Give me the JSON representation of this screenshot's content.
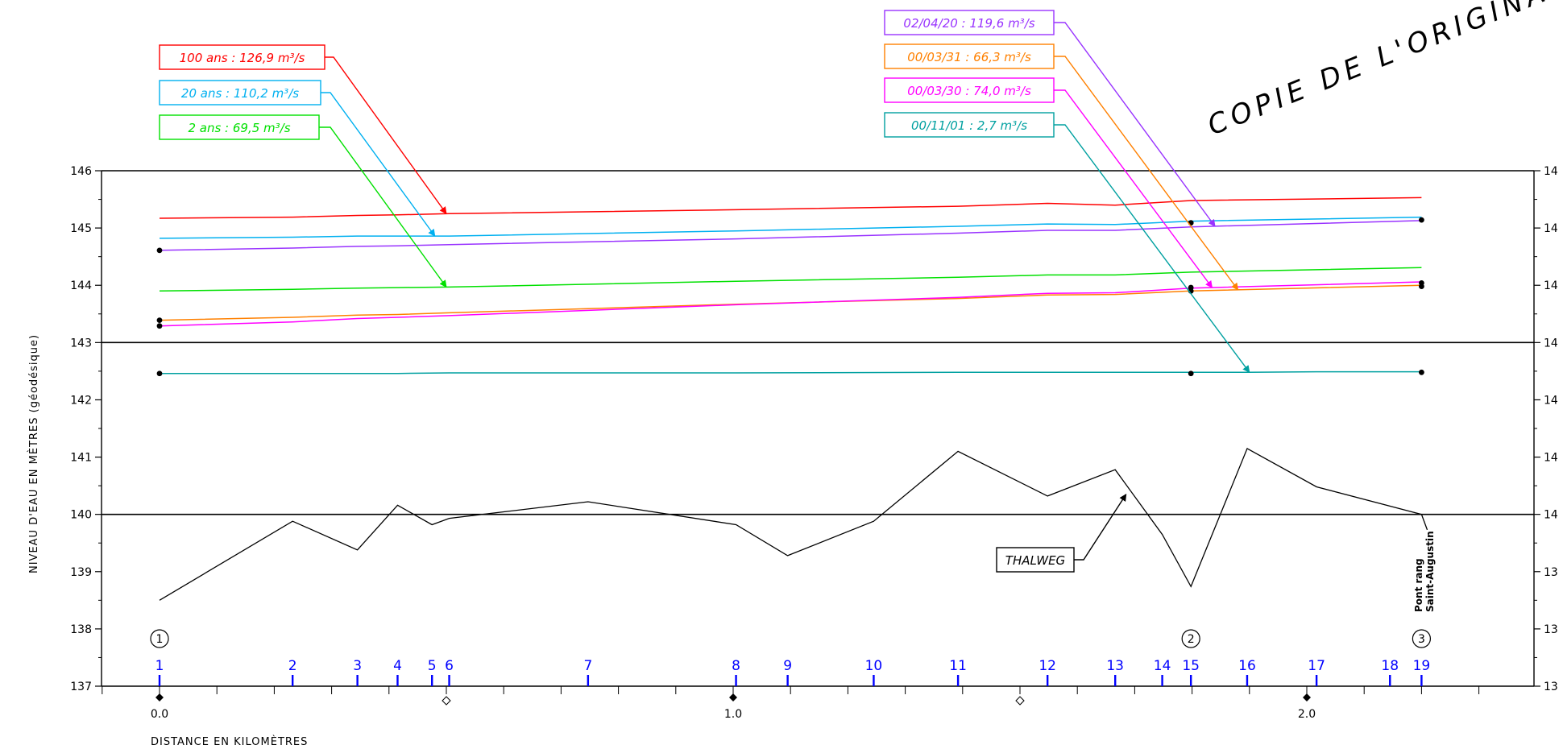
{
  "stamp_text": "COPIE DE L'ORIGINAL",
  "chart_data": {
    "type": "line",
    "title": "",
    "xlabel": "DISTANCE EN KILOMÈTRES",
    "ylabel": "NIVEAU D'EAU EN MÈTRES (géodésique)",
    "xlim": [
      -0.1,
      2.39
    ],
    "ylim": [
      137,
      146
    ],
    "y_ticks": [
      "137",
      "138",
      "139",
      "140",
      "141",
      "142",
      "143",
      "144",
      "145",
      "146"
    ],
    "y_ticks_right": [
      "13",
      "13",
      "13",
      "14",
      "14",
      "14",
      "14",
      "14",
      "14",
      "14"
    ],
    "x_ticks": [
      {
        "x": 0.0,
        "label": "0.0"
      },
      {
        "x": 1.0,
        "label": "1.0"
      },
      {
        "x": 2.0,
        "label": "2.0"
      }
    ],
    "major_gridlines": [
      140,
      143,
      146
    ],
    "sections": [
      {
        "label": "1",
        "x": 0.0
      },
      {
        "label": "2",
        "x": 0.232
      },
      {
        "label": "3",
        "x": 0.345
      },
      {
        "label": "4",
        "x": 0.415
      },
      {
        "label": "5",
        "x": 0.475
      },
      {
        "label": "6",
        "x": 0.505
      },
      {
        "label": "7",
        "x": 0.747
      },
      {
        "label": "8",
        "x": 1.005
      },
      {
        "label": "9",
        "x": 1.095
      },
      {
        "label": "10",
        "x": 1.245
      },
      {
        "label": "11",
        "x": 1.392
      },
      {
        "label": "12",
        "x": 1.548
      },
      {
        "label": "13",
        "x": 1.666
      },
      {
        "label": "14",
        "x": 1.748
      },
      {
        "label": "15",
        "x": 1.798
      },
      {
        "label": "16",
        "x": 1.896
      },
      {
        "label": "17",
        "x": 2.017
      },
      {
        "label": "18",
        "x": 2.145
      },
      {
        "label": "19",
        "x": 2.2
      }
    ],
    "stations": [
      {
        "label": "1",
        "x": 0.0
      },
      {
        "label": "2",
        "x": 1.798
      },
      {
        "label": "3",
        "x": 2.2
      }
    ],
    "bridge_label_line1": "Pont rang",
    "bridge_label_line2": "Saint-Augustin",
    "series": [
      {
        "name": "100 ans : 126,9 m³/s",
        "color": "#ff0000",
        "x": [
          0,
          0.232,
          0.345,
          0.415,
          0.505,
          1.005,
          1.392,
          1.548,
          1.666,
          1.798,
          2.2
        ],
        "y": [
          145.17,
          145.19,
          145.22,
          145.23,
          145.25,
          145.32,
          145.38,
          145.43,
          145.4,
          145.48,
          145.53
        ]
      },
      {
        "name": "20 ans : 110,2 m³/s",
        "color": "#00b0f0",
        "x": [
          0,
          0.232,
          0.345,
          0.415,
          0.505,
          1.005,
          1.392,
          1.548,
          1.666,
          1.798,
          2.2
        ],
        "y": [
          144.82,
          144.84,
          144.86,
          144.86,
          144.86,
          144.95,
          145.03,
          145.07,
          145.06,
          145.12,
          145.19
        ]
      },
      {
        "name": "02/04/20 : 119,6 m³/s",
        "color": "#9933ff",
        "x": [
          0,
          0.232,
          0.345,
          0.415,
          0.505,
          1.005,
          1.392,
          1.548,
          1.666,
          1.798,
          2.2
        ],
        "y": [
          144.61,
          144.65,
          144.68,
          144.69,
          144.71,
          144.81,
          144.91,
          144.96,
          144.96,
          145.02,
          145.13
        ]
      },
      {
        "name": "2 ans : 69,5 m³/s",
        "color": "#00e000",
        "x": [
          0,
          0.232,
          0.345,
          0.415,
          0.505,
          1.005,
          1.392,
          1.548,
          1.666,
          1.798,
          2.2
        ],
        "y": [
          143.9,
          143.93,
          143.95,
          143.96,
          143.97,
          144.07,
          144.14,
          144.18,
          144.18,
          144.23,
          144.31
        ]
      },
      {
        "name": "00/03/31 : 66,3 m³/s",
        "color": "#ff8000",
        "x": [
          0,
          0.232,
          0.345,
          0.415,
          0.505,
          1.005,
          1.392,
          1.548,
          1.666,
          1.798,
          2.2
        ],
        "y": [
          143.39,
          143.44,
          143.48,
          143.49,
          143.52,
          143.67,
          143.77,
          143.83,
          143.84,
          143.9,
          144.0
        ]
      },
      {
        "name": "00/03/30 : 74,0 m³/s",
        "color": "#ff00ff",
        "x": [
          0,
          0.232,
          0.345,
          0.415,
          0.505,
          1.005,
          1.392,
          1.548,
          1.666,
          1.798,
          2.2
        ],
        "y": [
          143.29,
          143.36,
          143.42,
          143.44,
          143.47,
          143.66,
          143.79,
          143.86,
          143.87,
          143.95,
          144.06
        ]
      },
      {
        "name": "00/11/01 : 2,7 m³/s",
        "color": "#00a0a0",
        "x": [
          0,
          0.232,
          0.415,
          0.505,
          1.005,
          1.392,
          1.798,
          1.896,
          2.017,
          2.2
        ],
        "y": [
          142.46,
          142.46,
          142.46,
          142.47,
          142.47,
          142.48,
          142.48,
          142.48,
          142.49,
          142.49
        ]
      },
      {
        "name": "THALWEG",
        "color": "#000000",
        "x": [
          0,
          0.232,
          0.345,
          0.415,
          0.475,
          0.505,
          0.747,
          1.005,
          1.095,
          1.245,
          1.392,
          1.548,
          1.666,
          1.748,
          1.798,
          1.896,
          2.017,
          2.2,
          2.21
        ],
        "y": [
          138.5,
          139.88,
          139.38,
          140.16,
          139.82,
          139.93,
          140.22,
          139.82,
          139.28,
          139.88,
          141.1,
          140.32,
          140.78,
          139.65,
          138.74,
          141.15,
          140.48,
          140.0,
          139.73
        ]
      }
    ],
    "observed_points": [
      {
        "x": 0,
        "y": 144.61
      },
      {
        "x": 0,
        "y": 143.39
      },
      {
        "x": 0,
        "y": 143.29
      },
      {
        "x": 0,
        "y": 142.46
      },
      {
        "x": 1.798,
        "y": 145.09
      },
      {
        "x": 1.798,
        "y": 143.96
      },
      {
        "x": 1.798,
        "y": 143.9
      },
      {
        "x": 1.798,
        "y": 142.46
      },
      {
        "x": 2.2,
        "y": 145.14
      },
      {
        "x": 2.2,
        "y": 144.04
      },
      {
        "x": 2.2,
        "y": 143.98
      },
      {
        "x": 2.2,
        "y": 142.48
      }
    ],
    "annotations": [
      {
        "text": "100 ans : 126,9 m³/s",
        "color": "#ff0000",
        "target": {
          "x": 0.5,
          "y": 145.25
        }
      },
      {
        "text": "20 ans : 110,2 m³/s",
        "color": "#00b0f0",
        "target": {
          "x": 0.48,
          "y": 144.86
        }
      },
      {
        "text": "2 ans : 69,5 m³/s",
        "color": "#00e000",
        "target": {
          "x": 0.5,
          "y": 143.97
        }
      },
      {
        "text": "02/04/20 : 119,6 m³/s",
        "color": "#9933ff",
        "target": {
          "x": 1.84,
          "y": 145.03
        }
      },
      {
        "text": "00/03/31 : 66,3 m³/s",
        "color": "#ff8000",
        "target": {
          "x": 1.88,
          "y": 143.92
        }
      },
      {
        "text": "00/03/30 : 74,0 m³/s",
        "color": "#ff00ff",
        "target": {
          "x": 1.835,
          "y": 143.96
        }
      },
      {
        "text": "00/11/01 : 2,7 m³/s",
        "color": "#00a0a0",
        "target": {
          "x": 1.9,
          "y": 142.48
        }
      },
      {
        "text": "THALWEG",
        "color": "#000000",
        "target": {
          "x": 1.685,
          "y": 140.35
        }
      }
    ]
  }
}
